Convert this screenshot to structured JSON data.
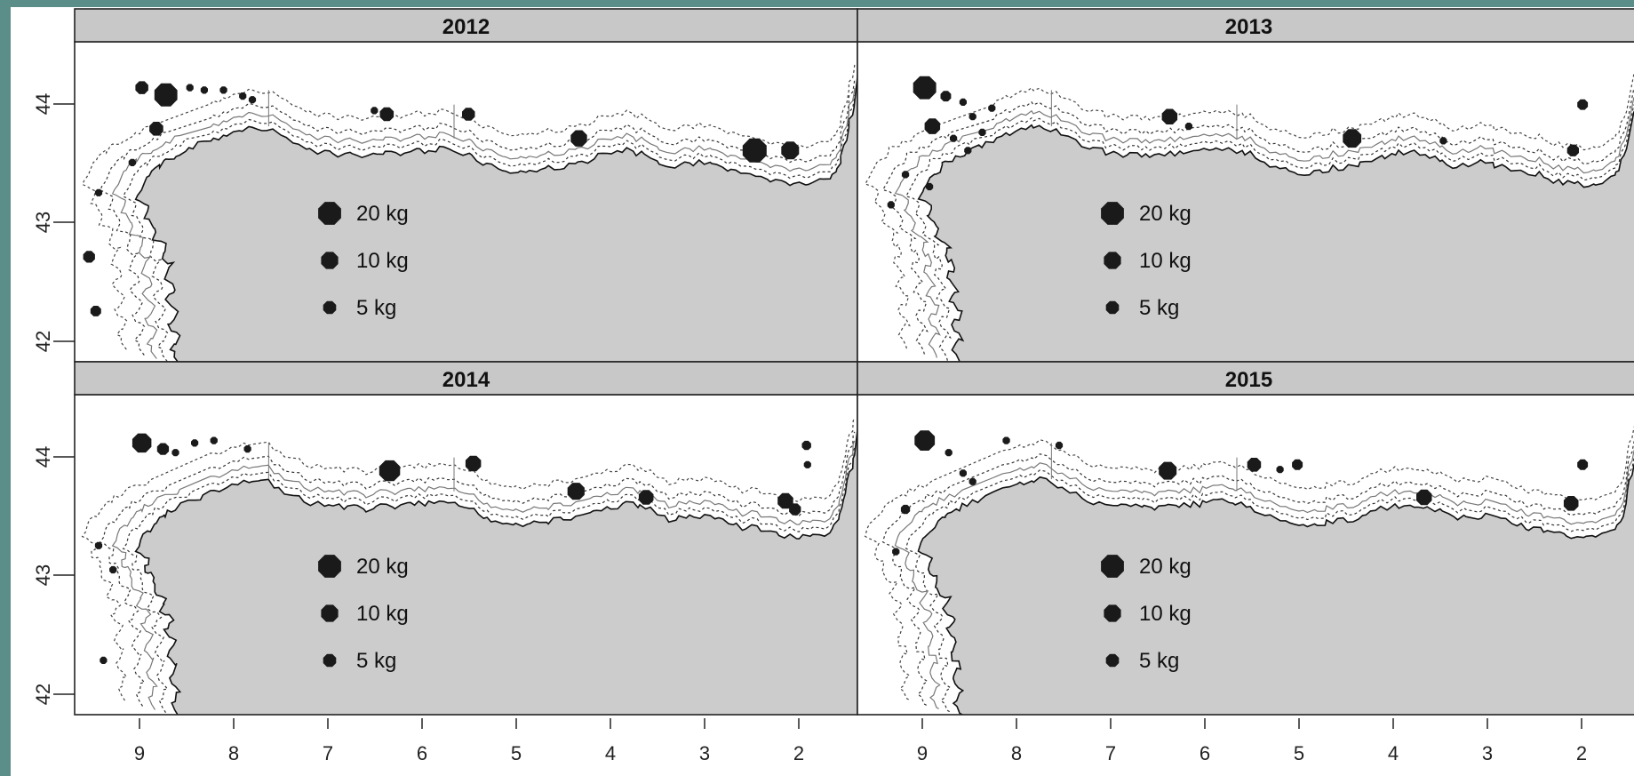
{
  "figure": {
    "x_axis": {
      "ticks": [
        "9",
        "8",
        "7",
        "6",
        "5",
        "4",
        "3",
        "2"
      ],
      "reversed": true,
      "range": [
        9.7,
        1.55
      ]
    },
    "y_axis": {
      "ticks": [
        "42",
        "43",
        "44"
      ],
      "range": [
        41.85,
        44.5
      ]
    },
    "colors": {
      "frame": "#5b8e88",
      "land": "#cccccc",
      "strip": "#c8c8c8",
      "marker": "#1a1a1a",
      "sea": "#ffffff"
    },
    "legend": [
      {
        "label": "20 kg",
        "kg": 20
      },
      {
        "label": "10 kg",
        "kg": 10
      },
      {
        "label": "5 kg",
        "kg": 5
      }
    ],
    "panels": [
      {
        "year": "2012",
        "points": [
          {
            "lon": 9.0,
            "lat": 44.12,
            "kg": 5
          },
          {
            "lon": 8.75,
            "lat": 44.06,
            "kg": 20
          },
          {
            "lon": 8.85,
            "lat": 43.78,
            "kg": 6
          },
          {
            "lon": 8.5,
            "lat": 44.12,
            "kg": 1
          },
          {
            "lon": 8.35,
            "lat": 44.1,
            "kg": 1
          },
          {
            "lon": 8.15,
            "lat": 44.1,
            "kg": 1
          },
          {
            "lon": 7.95,
            "lat": 44.05,
            "kg": 1
          },
          {
            "lon": 7.85,
            "lat": 44.02,
            "kg": 1
          },
          {
            "lon": 6.45,
            "lat": 43.9,
            "kg": 6
          },
          {
            "lon": 6.58,
            "lat": 43.93,
            "kg": 1
          },
          {
            "lon": 5.6,
            "lat": 43.9,
            "kg": 5
          },
          {
            "lon": 4.45,
            "lat": 43.7,
            "kg": 9
          },
          {
            "lon": 2.62,
            "lat": 43.6,
            "kg": 22
          },
          {
            "lon": 2.25,
            "lat": 43.6,
            "kg": 11
          },
          {
            "lon": 9.55,
            "lat": 42.72,
            "kg": 4
          },
          {
            "lon": 9.48,
            "lat": 42.27,
            "kg": 3
          },
          {
            "lon": 9.45,
            "lat": 43.25,
            "kg": 1
          },
          {
            "lon": 9.1,
            "lat": 43.5,
            "kg": 1
          }
        ]
      },
      {
        "year": "2013",
        "points": [
          {
            "lon": 9.0,
            "lat": 44.12,
            "kg": 20
          },
          {
            "lon": 8.78,
            "lat": 44.05,
            "kg": 3
          },
          {
            "lon": 8.92,
            "lat": 43.8,
            "kg": 8
          },
          {
            "lon": 8.6,
            "lat": 44.0,
            "kg": 1
          },
          {
            "lon": 8.5,
            "lat": 43.88,
            "kg": 1
          },
          {
            "lon": 8.7,
            "lat": 43.7,
            "kg": 1
          },
          {
            "lon": 8.4,
            "lat": 43.75,
            "kg": 1
          },
          {
            "lon": 8.55,
            "lat": 43.6,
            "kg": 1
          },
          {
            "lon": 8.3,
            "lat": 43.95,
            "kg": 1
          },
          {
            "lon": 9.2,
            "lat": 43.4,
            "kg": 1
          },
          {
            "lon": 9.35,
            "lat": 43.15,
            "kg": 1
          },
          {
            "lon": 8.95,
            "lat": 43.3,
            "kg": 1
          },
          {
            "lon": 6.45,
            "lat": 43.88,
            "kg": 8
          },
          {
            "lon": 6.25,
            "lat": 43.8,
            "kg": 1
          },
          {
            "lon": 4.55,
            "lat": 43.7,
            "kg": 12
          },
          {
            "lon": 3.6,
            "lat": 43.68,
            "kg": 1
          },
          {
            "lon": 2.25,
            "lat": 43.6,
            "kg": 4
          },
          {
            "lon": 2.15,
            "lat": 43.98,
            "kg": 3
          }
        ]
      },
      {
        "year": "2014",
        "points": [
          {
            "lon": 9.0,
            "lat": 44.1,
            "kg": 13
          },
          {
            "lon": 8.78,
            "lat": 44.05,
            "kg": 4
          },
          {
            "lon": 8.65,
            "lat": 44.02,
            "kg": 1
          },
          {
            "lon": 8.45,
            "lat": 44.1,
            "kg": 1
          },
          {
            "lon": 8.25,
            "lat": 44.12,
            "kg": 1
          },
          {
            "lon": 7.9,
            "lat": 44.05,
            "kg": 1
          },
          {
            "lon": 6.42,
            "lat": 43.87,
            "kg": 16
          },
          {
            "lon": 5.55,
            "lat": 43.93,
            "kg": 8
          },
          {
            "lon": 4.48,
            "lat": 43.7,
            "kg": 10
          },
          {
            "lon": 3.75,
            "lat": 43.65,
            "kg": 7
          },
          {
            "lon": 2.3,
            "lat": 43.62,
            "kg": 8
          },
          {
            "lon": 2.2,
            "lat": 43.55,
            "kg": 4
          },
          {
            "lon": 2.08,
            "lat": 44.08,
            "kg": 2
          },
          {
            "lon": 2.07,
            "lat": 43.92,
            "kg": 1
          },
          {
            "lon": 9.45,
            "lat": 43.25,
            "kg": 1
          },
          {
            "lon": 9.3,
            "lat": 43.05,
            "kg": 1
          },
          {
            "lon": 9.4,
            "lat": 42.3,
            "kg": 1
          }
        ]
      },
      {
        "year": "2015",
        "points": [
          {
            "lon": 9.0,
            "lat": 44.12,
            "kg": 15
          },
          {
            "lon": 8.75,
            "lat": 44.02,
            "kg": 1
          },
          {
            "lon": 8.6,
            "lat": 43.85,
            "kg": 1
          },
          {
            "lon": 8.5,
            "lat": 43.78,
            "kg": 1
          },
          {
            "lon": 9.2,
            "lat": 43.55,
            "kg": 2
          },
          {
            "lon": 9.3,
            "lat": 43.2,
            "kg": 1
          },
          {
            "lon": 8.15,
            "lat": 44.12,
            "kg": 1
          },
          {
            "lon": 7.6,
            "lat": 44.08,
            "kg": 1
          },
          {
            "lon": 6.47,
            "lat": 43.87,
            "kg": 11
          },
          {
            "lon": 5.57,
            "lat": 43.92,
            "kg": 6
          },
          {
            "lon": 5.12,
            "lat": 43.92,
            "kg": 3
          },
          {
            "lon": 5.3,
            "lat": 43.88,
            "kg": 1
          },
          {
            "lon": 3.8,
            "lat": 43.65,
            "kg": 8
          },
          {
            "lon": 2.27,
            "lat": 43.6,
            "kg": 7
          },
          {
            "lon": 2.15,
            "lat": 43.92,
            "kg": 3
          }
        ]
      }
    ]
  }
}
